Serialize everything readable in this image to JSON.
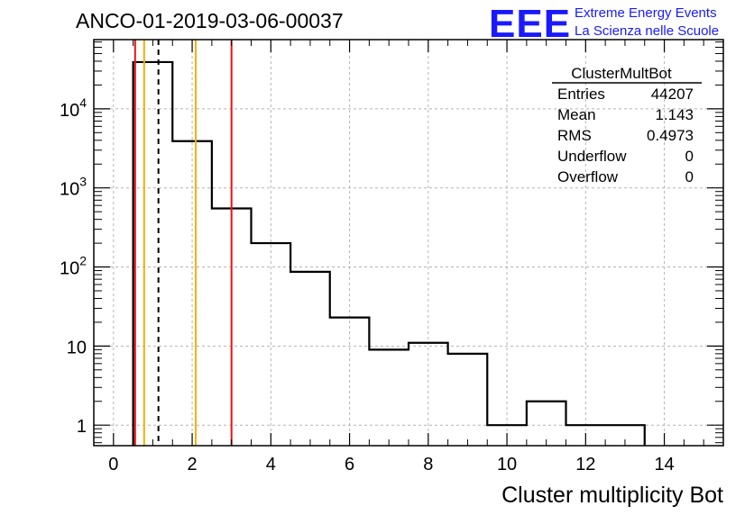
{
  "chart_data": {
    "type": "histogram",
    "title": "ANCO-01-2019-03-06-00037",
    "xlabel": "Cluster multiplicity Bot",
    "ylabel": "",
    "xlim": [
      -0.5,
      15.5
    ],
    "ylim": [
      0.55,
      75000
    ],
    "yscale": "log",
    "grid": true,
    "x_ticks": [
      0,
      2,
      4,
      6,
      8,
      10,
      12,
      14
    ],
    "y_ticks": [
      {
        "value": 1,
        "base": "1",
        "exp": ""
      },
      {
        "value": 10,
        "base": "10",
        "exp": ""
      },
      {
        "value": 100,
        "base": "10",
        "exp": "2"
      },
      {
        "value": 1000,
        "base": "10",
        "exp": "3"
      },
      {
        "value": 10000,
        "base": "10",
        "exp": "4"
      }
    ],
    "bins": [
      {
        "low": 0.5,
        "high": 1.5,
        "count": 39000
      },
      {
        "low": 1.5,
        "high": 2.5,
        "count": 3900
      },
      {
        "low": 2.5,
        "high": 3.5,
        "count": 550
      },
      {
        "low": 3.5,
        "high": 4.5,
        "count": 200
      },
      {
        "low": 4.5,
        "high": 5.5,
        "count": 87
      },
      {
        "low": 5.5,
        "high": 6.5,
        "count": 23
      },
      {
        "low": 6.5,
        "high": 7.5,
        "count": 9
      },
      {
        "low": 7.5,
        "high": 8.5,
        "count": 11
      },
      {
        "low": 8.5,
        "high": 9.5,
        "count": 8
      },
      {
        "low": 9.5,
        "high": 10.5,
        "count": 1
      },
      {
        "low": 10.5,
        "high": 11.5,
        "count": 2
      },
      {
        "low": 11.5,
        "high": 12.5,
        "count": 1
      },
      {
        "low": 12.5,
        "high": 13.5,
        "count": 1
      }
    ],
    "vertical_lines": [
      {
        "x": 0.55,
        "color": "#ee1111",
        "style": "solid"
      },
      {
        "x": 0.78,
        "color": "#f5b000",
        "style": "solid"
      },
      {
        "x": 1.143,
        "color": "#000000",
        "style": "dashed"
      },
      {
        "x": 2.09,
        "color": "#f5b000",
        "style": "solid"
      },
      {
        "x": 3.0,
        "color": "#ee1111",
        "style": "solid"
      }
    ],
    "stats_box": {
      "name": "ClusterMultBot",
      "rows": [
        {
          "label": "Entries",
          "value": "44207"
        },
        {
          "label": "Mean",
          "value": "1.143"
        },
        {
          "label": "RMS",
          "value": "0.4973"
        },
        {
          "label": "Underflow",
          "value": "0"
        },
        {
          "label": "Overflow",
          "value": "0"
        }
      ]
    }
  },
  "logo": {
    "mark": "EEE",
    "line1": "Extreme Energy Events",
    "line2": "La Scienza nelle Scuole",
    "color": "#1a1aff"
  }
}
